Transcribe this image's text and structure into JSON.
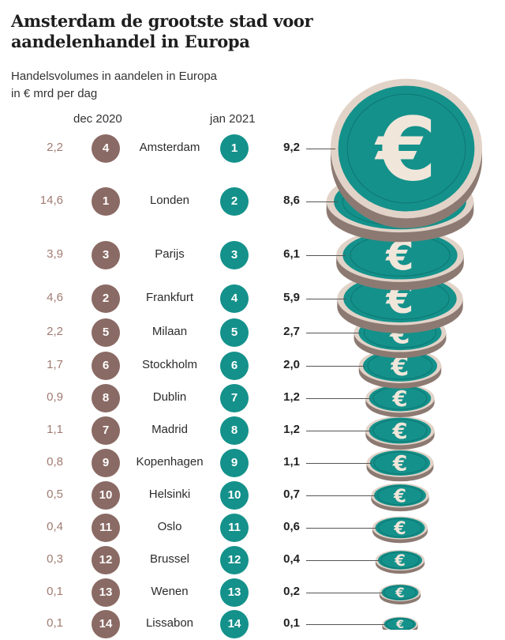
{
  "title": "Amsterdam de grootste stad voor aandelenhandel in Europa",
  "subtitle_line1": "Handelsvolumes in aandelen in Europa",
  "subtitle_line2": "in € mrd per dag",
  "col_dec2020": "dec 2020",
  "col_jan2021": "jan 2021",
  "colors": {
    "brown": "#8a6a64",
    "teal": "#14918b",
    "value_brown": "#a07b72"
  },
  "chart_data": {
    "type": "table",
    "categories": [
      "Amsterdam",
      "Londen",
      "Parijs",
      "Frankfurt",
      "Milaan",
      "Stockholm",
      "Dublin",
      "Madrid",
      "Kopenhagen",
      "Helsinki",
      "Oslo",
      "Brussel",
      "Wenen",
      "Lissabon"
    ],
    "series": [
      {
        "name": "dec 2020",
        "values_text": [
          "2,2",
          "14,6",
          "3,9",
          "4,6",
          "2,2",
          "1,7",
          "0,9",
          "1,1",
          "0,8",
          "0,5",
          "0,4",
          "0,3",
          "0,1",
          "0,1"
        ],
        "values": [
          2.2,
          14.6,
          3.9,
          4.6,
          2.2,
          1.7,
          0.9,
          1.1,
          0.8,
          0.5,
          0.4,
          0.3,
          0.1,
          0.1
        ],
        "ranks": [
          "4",
          "1",
          "3",
          "2",
          "5",
          "6",
          "8",
          "7",
          "9",
          "10",
          "11",
          "12",
          "13",
          "14"
        ]
      },
      {
        "name": "jan 2021",
        "values_text": [
          "9,2",
          "8,6",
          "6,1",
          "5,9",
          "2,7",
          "2,0",
          "1,2",
          "1,2",
          "1,1",
          "0,7",
          "0,6",
          "0,4",
          "0,2",
          "0,1"
        ],
        "values": [
          9.2,
          8.6,
          6.1,
          5.9,
          2.7,
          2.0,
          1.2,
          1.2,
          1.1,
          0.7,
          0.6,
          0.4,
          0.2,
          0.1
        ],
        "ranks": [
          "1",
          "2",
          "3",
          "4",
          "5",
          "6",
          "7",
          "8",
          "9",
          "10",
          "11",
          "12",
          "13",
          "14"
        ]
      }
    ],
    "coin_symbol": "€"
  }
}
